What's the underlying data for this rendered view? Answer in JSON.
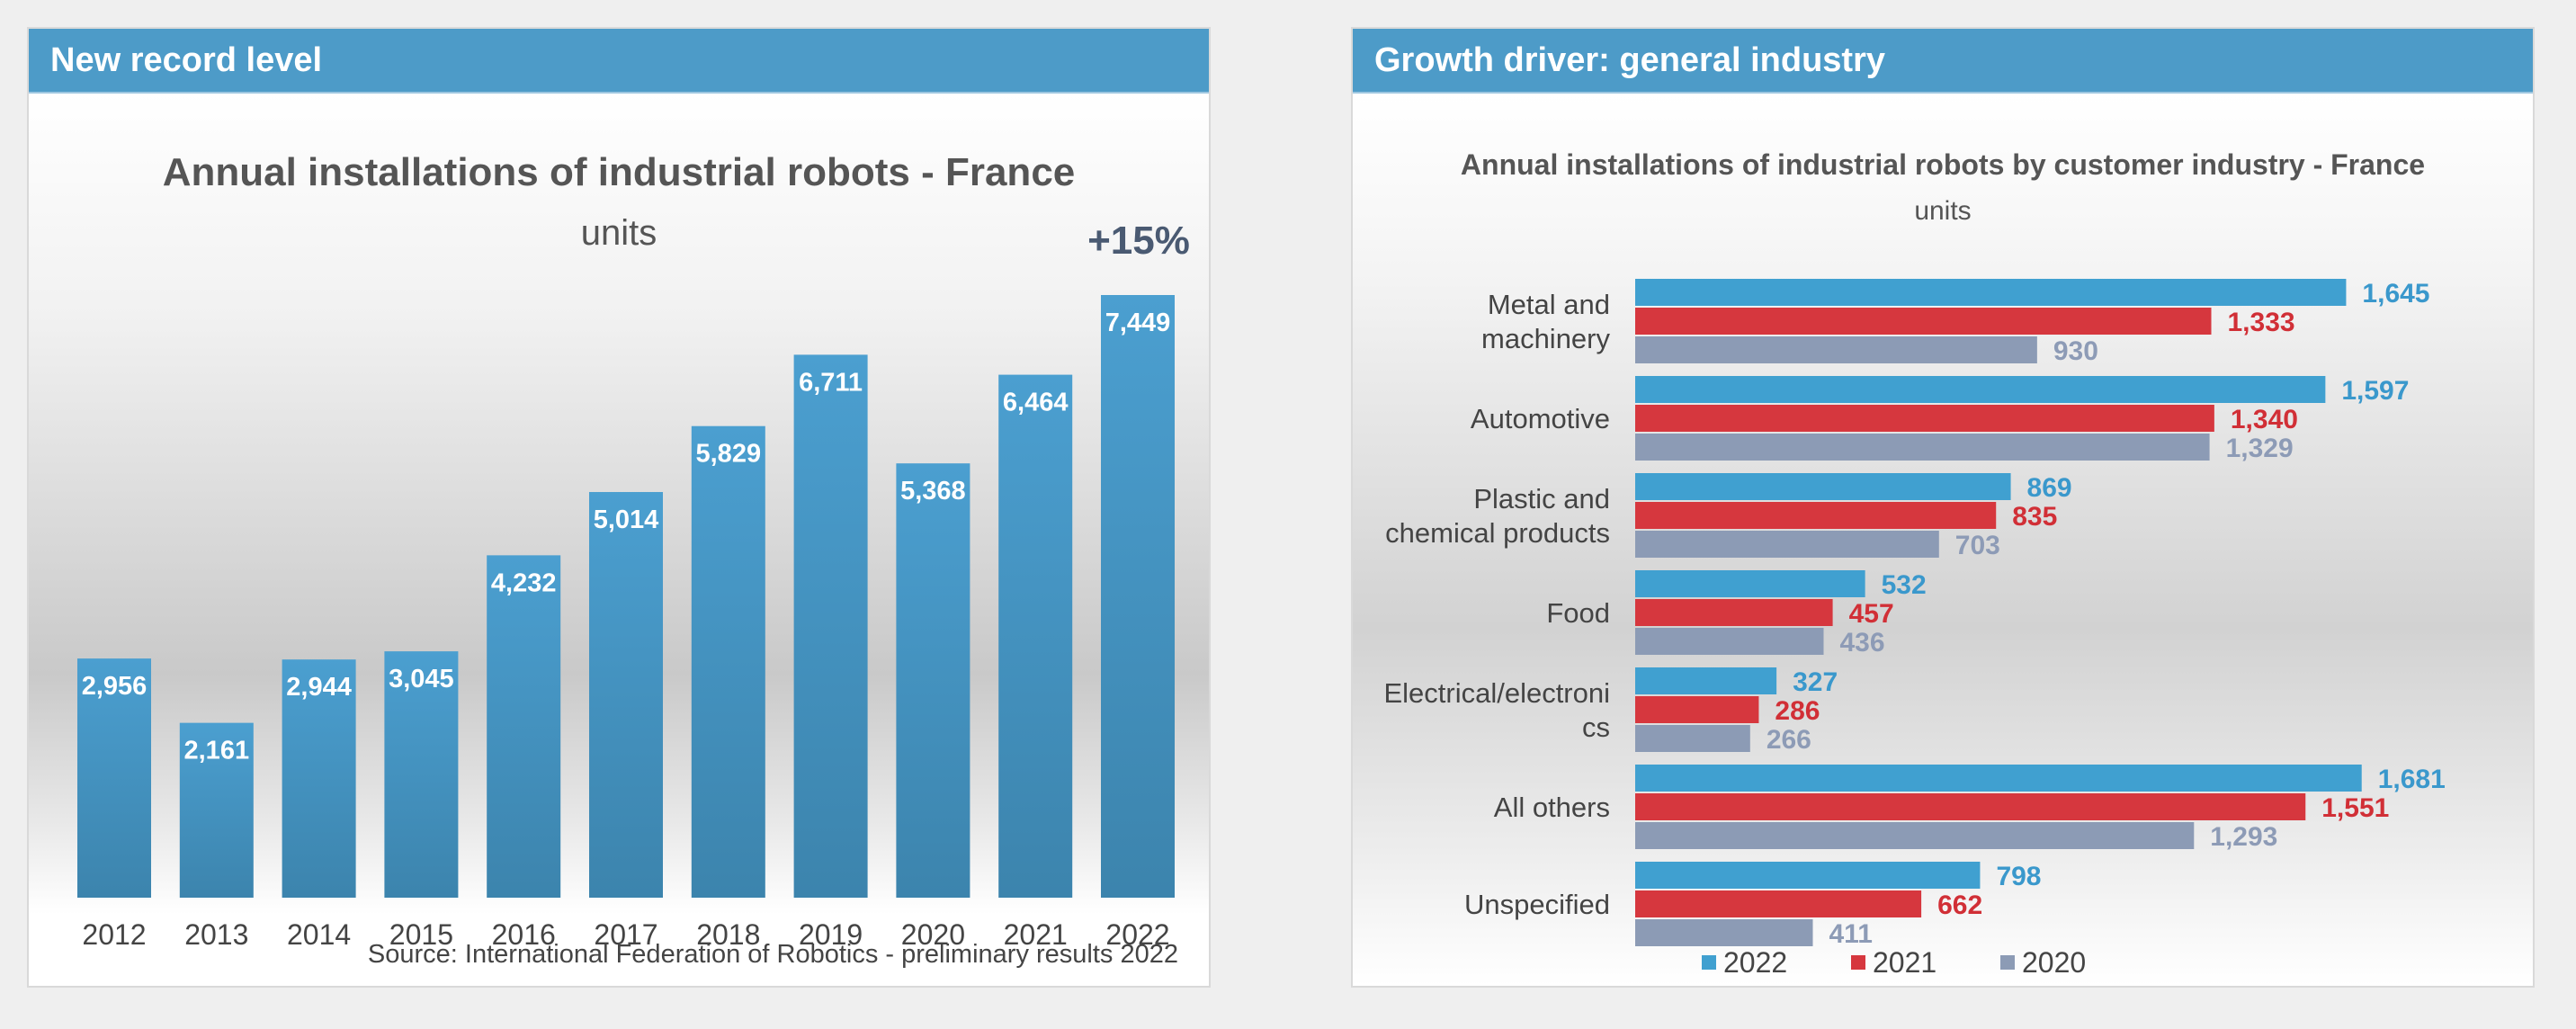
{
  "left_panel": {
    "header": "New record level",
    "source": "Source: International Federation of Robotics - preliminary results 2022"
  },
  "right_panel": {
    "header": "Growth driver: general industry"
  },
  "colors": {
    "header_bg": "#4d9bc8",
    "bar_left": "#4a9ac9",
    "series_2022": "#40a0d0",
    "series_2021": "#d6373e",
    "series_2020": "#8c9bb5",
    "label_2022": "#3a98cc",
    "label_2021": "#d12f36",
    "label_2020": "#8d9bb6",
    "growth_text": "#4a5a72"
  },
  "chart_data": [
    {
      "type": "bar",
      "title": "Annual installations of industrial robots - France",
      "subtitle": "units",
      "annotation": "+15%",
      "categories": [
        "2012",
        "2013",
        "2014",
        "2015",
        "2016",
        "2017",
        "2018",
        "2019",
        "2020",
        "2021",
        "2022"
      ],
      "values": [
        2956,
        2161,
        2944,
        3045,
        4232,
        5014,
        5829,
        6711,
        5368,
        6464,
        7449
      ],
      "value_labels": [
        "2,956",
        "2,161",
        "2,944",
        "3,045",
        "4,232",
        "5,014",
        "5,829",
        "6,711",
        "5,368",
        "6,464",
        "7,449"
      ],
      "ylim": [
        0,
        7449
      ]
    },
    {
      "type": "bar",
      "orientation": "horizontal",
      "title": "Annual installations  of industrial  robots by customer industry  - France",
      "subtitle": "units",
      "categories": [
        [
          "Metal and",
          "machinery"
        ],
        [
          "Automotive"
        ],
        [
          "Plastic and",
          "chemical products"
        ],
        [
          "Food"
        ],
        [
          "Electrical/electroni",
          "cs"
        ],
        [
          "All others"
        ],
        [
          "Unspecified"
        ]
      ],
      "series": [
        {
          "name": "2022",
          "values": [
            1645,
            1597,
            869,
            532,
            327,
            1681,
            798
          ],
          "labels": [
            "1,645",
            "1,597",
            "869",
            "532",
            "327",
            "1,681",
            "798"
          ]
        },
        {
          "name": "2021",
          "values": [
            1333,
            1340,
            835,
            457,
            286,
            1551,
            662
          ],
          "labels": [
            "1,333",
            "1,340",
            "835",
            "457",
            "286",
            "1,551",
            "662"
          ]
        },
        {
          "name": "2020",
          "values": [
            930,
            1329,
            703,
            436,
            266,
            1293,
            411
          ],
          "labels": [
            "930",
            "1,329",
            "703",
            "436",
            "266",
            "1,293",
            "411"
          ]
        }
      ],
      "legend_position": "bottom"
    }
  ]
}
